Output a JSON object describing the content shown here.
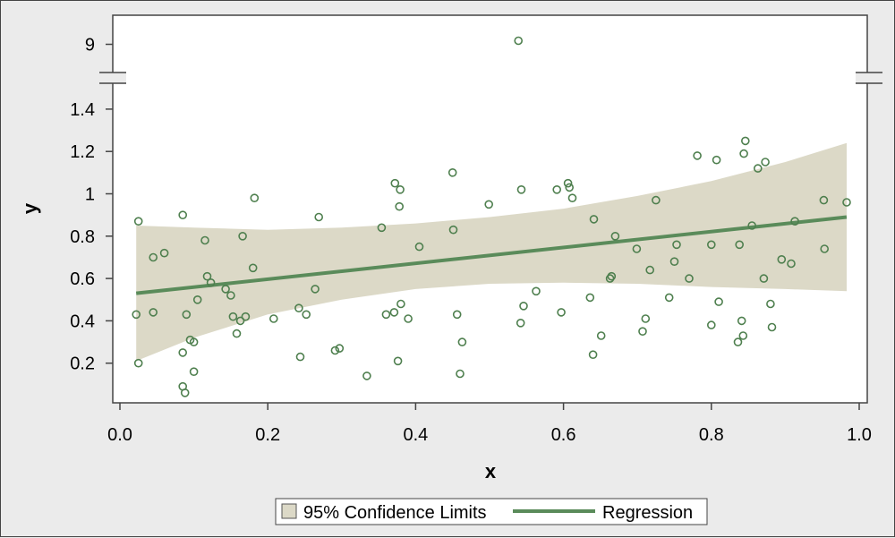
{
  "colors": {
    "background": "#ebebeb",
    "plot_area": "#ffffff",
    "band_fill": "#dcd9c7",
    "line": "#5a8b5a",
    "marker": "#4e7f4e"
  },
  "chart_data": {
    "type": "scatter",
    "xlabel": "x",
    "ylabel": "y",
    "xlim": [
      0,
      1
    ],
    "ylim_lower": [
      0,
      1.5
    ],
    "ylim_upper": [
      8.7,
      9.5
    ],
    "axis_break": "between 1.5 and 8.7 on y",
    "x_ticks": [
      "0.0",
      "0.2",
      "0.4",
      "0.6",
      "0.8",
      "1.0"
    ],
    "y_ticks": [
      "0.2",
      "0.4",
      "0.6",
      "0.8",
      "1",
      "1.2",
      "1.4",
      "9"
    ],
    "grid": false,
    "legend_position": "bottom-center",
    "legend": [
      "95% Confidence Limits",
      "Regression"
    ],
    "series": [
      {
        "name": "Regression",
        "type": "line",
        "x": [
          0.022,
          0.983
        ],
        "y": [
          0.53,
          0.89
        ]
      },
      {
        "name": "95% Confidence Limits",
        "type": "band",
        "x": [
          0.022,
          0.1,
          0.2,
          0.3,
          0.4,
          0.5,
          0.6,
          0.7,
          0.8,
          0.9,
          0.983
        ],
        "lower": [
          0.21,
          0.32,
          0.43,
          0.5,
          0.55,
          0.575,
          0.58,
          0.575,
          0.56,
          0.55,
          0.54
        ],
        "upper": [
          0.85,
          0.84,
          0.83,
          0.84,
          0.86,
          0.89,
          0.93,
          0.99,
          1.06,
          1.15,
          1.24
        ]
      },
      {
        "name": "data",
        "type": "scatter",
        "x": [
          0.022,
          0.025,
          0.025,
          0.045,
          0.045,
          0.06,
          0.085,
          0.085,
          0.085,
          0.088,
          0.09,
          0.095,
          0.1,
          0.1,
          0.105,
          0.115,
          0.118,
          0.123,
          0.143,
          0.15,
          0.153,
          0.158,
          0.163,
          0.166,
          0.17,
          0.18,
          0.182,
          0.208,
          0.242,
          0.244,
          0.252,
          0.264,
          0.269,
          0.291,
          0.297,
          0.334,
          0.354,
          0.36,
          0.371,
          0.372,
          0.376,
          0.378,
          0.379,
          0.38,
          0.39,
          0.405,
          0.45,
          0.451,
          0.456,
          0.46,
          0.463,
          0.499,
          0.539,
          0.542,
          0.543,
          0.546,
          0.563,
          0.591,
          0.597,
          0.606,
          0.608,
          0.612,
          0.636,
          0.64,
          0.641,
          0.651,
          0.663,
          0.665,
          0.67,
          0.699,
          0.707,
          0.711,
          0.717,
          0.725,
          0.743,
          0.75,
          0.753,
          0.77,
          0.781,
          0.8,
          0.8,
          0.807,
          0.81,
          0.836,
          0.838,
          0.841,
          0.843,
          0.844,
          0.846,
          0.855,
          0.863,
          0.871,
          0.873,
          0.88,
          0.882,
          0.895,
          0.908,
          0.913,
          0.952,
          0.953,
          0.983
        ],
        "y": [
          0.43,
          0.87,
          0.2,
          0.7,
          0.44,
          0.72,
          0.9,
          0.25,
          0.09,
          0.06,
          0.43,
          0.31,
          0.3,
          0.16,
          0.5,
          0.78,
          0.61,
          0.58,
          0.55,
          0.52,
          0.42,
          0.34,
          0.4,
          0.8,
          0.42,
          0.65,
          0.98,
          0.41,
          0.46,
          0.23,
          0.43,
          0.55,
          0.89,
          0.26,
          0.27,
          0.14,
          0.84,
          0.43,
          0.44,
          1.05,
          0.21,
          0.94,
          1.02,
          0.48,
          0.41,
          0.75,
          1.1,
          0.83,
          0.43,
          0.15,
          0.3,
          0.95,
          9.05,
          0.39,
          1.02,
          0.47,
          0.54,
          1.02,
          0.44,
          1.05,
          1.03,
          0.98,
          0.51,
          0.24,
          0.88,
          0.33,
          0.6,
          0.61,
          0.8,
          0.74,
          0.35,
          0.41,
          0.64,
          0.97,
          0.51,
          0.68,
          0.76,
          0.6,
          1.18,
          0.38,
          0.76,
          1.16,
          0.49,
          0.3,
          0.76,
          0.4,
          0.33,
          1.19,
          1.25,
          0.85,
          1.12,
          0.6,
          1.15,
          0.48,
          0.37,
          0.69,
          0.67,
          0.87,
          0.97,
          0.74,
          0.96
        ]
      }
    ]
  }
}
